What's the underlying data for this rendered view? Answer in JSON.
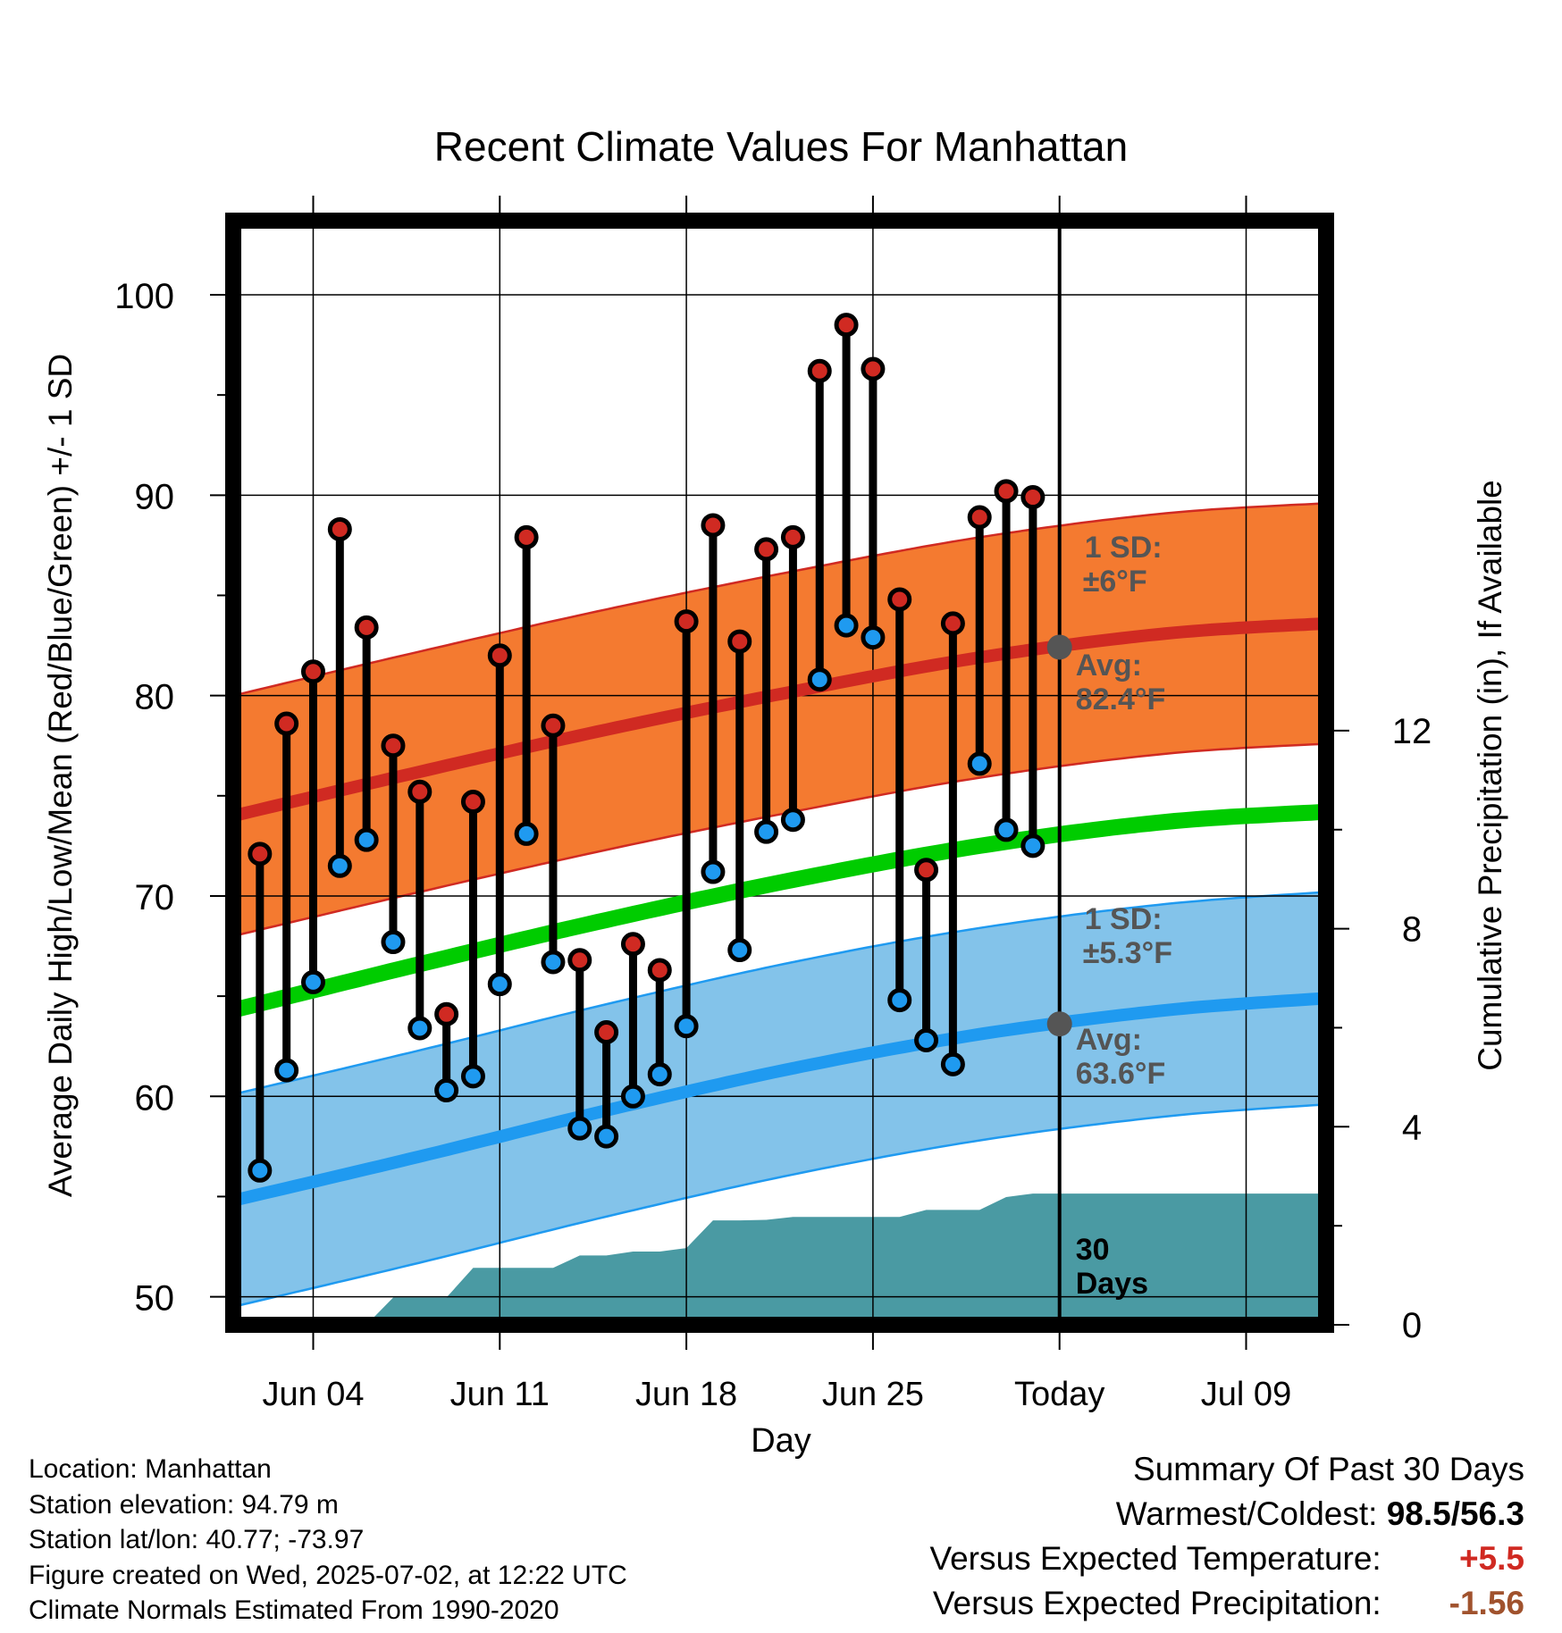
{
  "chart_data": {
    "type": "line",
    "title": "Recent Climate Values For Manhattan",
    "xlabel": "Day",
    "ylabel": "Average Daily High/Low/Mean (Red/Blue/Green) +/- 1 SD",
    "y2label": "Cumulative Precipitation (in), If Available",
    "ylim": [
      48.6,
      103.7
    ],
    "y2lim": [
      0,
      22.3
    ],
    "xlim": [
      "2025-06-01",
      "2025-07-12"
    ],
    "x_tick_dates": [
      "2025-06-04",
      "2025-06-11",
      "2025-06-18",
      "2025-06-25",
      "2025-07-02",
      "2025-07-09"
    ],
    "x_tick_labels": [
      "Jun 04",
      "Jun 11",
      "Jun 18",
      "Jun 25",
      "Today",
      "Jul 09"
    ],
    "y_ticks": [
      50,
      60,
      70,
      80,
      90,
      100
    ],
    "y_tick_labels": [
      "50",
      "60",
      "70",
      "80",
      "90",
      "100"
    ],
    "y2_ticks": [
      0,
      4,
      8,
      12
    ],
    "y2_tick_labels": [
      "0",
      "4",
      "8",
      "12"
    ],
    "grid": true,
    "today": "2025-07-02",
    "colors": {
      "high": "#d02a22",
      "low": "#1f9af0",
      "mean": "#00cc00",
      "high_band": "#f47a30",
      "low_band": "#83c3ea",
      "precip": "#4a9aa3",
      "marker_today": "#555555",
      "annotation": "#555555"
    },
    "normals": {
      "dates": [
        "2025-06-01",
        "2025-06-08",
        "2025-06-15",
        "2025-06-22",
        "2025-06-29",
        "2025-07-06",
        "2025-07-12"
      ],
      "high_avg": [
        74.0,
        76.2,
        78.3,
        80.2,
        81.9,
        83.1,
        83.6
      ],
      "high_sd": 6,
      "low_avg": [
        54.8,
        57.0,
        59.3,
        61.4,
        63.1,
        64.3,
        64.9
      ],
      "low_sd": 5.3,
      "mean_avg": [
        64.3,
        66.6,
        68.8,
        70.8,
        72.5,
        73.7,
        74.2
      ]
    },
    "series": [
      {
        "name": "High",
        "x": [
          "2025-06-02",
          "2025-06-03",
          "2025-06-04",
          "2025-06-05",
          "2025-06-06",
          "2025-06-07",
          "2025-06-08",
          "2025-06-09",
          "2025-06-10",
          "2025-06-11",
          "2025-06-12",
          "2025-06-13",
          "2025-06-14",
          "2025-06-15",
          "2025-06-16",
          "2025-06-17",
          "2025-06-18",
          "2025-06-19",
          "2025-06-20",
          "2025-06-21",
          "2025-06-22",
          "2025-06-23",
          "2025-06-24",
          "2025-06-25",
          "2025-06-26",
          "2025-06-27",
          "2025-06-28",
          "2025-06-29",
          "2025-06-30",
          "2025-07-01"
        ],
        "values": [
          72.1,
          78.6,
          81.2,
          88.3,
          83.4,
          77.5,
          75.2,
          64.1,
          74.7,
          82.0,
          87.9,
          78.5,
          66.8,
          63.2,
          67.6,
          66.3,
          83.7,
          88.5,
          82.7,
          87.3,
          87.9,
          96.2,
          98.5,
          96.3,
          84.8,
          71.3,
          83.6,
          88.9,
          90.2,
          89.9
        ]
      },
      {
        "name": "Low",
        "x": [
          "2025-06-02",
          "2025-06-03",
          "2025-06-04",
          "2025-06-05",
          "2025-06-06",
          "2025-06-07",
          "2025-06-08",
          "2025-06-09",
          "2025-06-10",
          "2025-06-11",
          "2025-06-12",
          "2025-06-13",
          "2025-06-14",
          "2025-06-15",
          "2025-06-16",
          "2025-06-17",
          "2025-06-18",
          "2025-06-19",
          "2025-06-20",
          "2025-06-21",
          "2025-06-22",
          "2025-06-23",
          "2025-06-24",
          "2025-06-25",
          "2025-06-26",
          "2025-06-27",
          "2025-06-28",
          "2025-06-29",
          "2025-06-30",
          "2025-07-01"
        ],
        "values": [
          56.3,
          61.3,
          65.7,
          71.5,
          72.8,
          67.7,
          63.4,
          60.3,
          61.0,
          65.6,
          73.1,
          66.7,
          58.4,
          58.0,
          60.0,
          61.1,
          63.5,
          71.2,
          67.3,
          73.2,
          73.8,
          80.8,
          83.5,
          82.9,
          64.8,
          62.8,
          61.6,
          76.6,
          73.3,
          72.5
        ]
      }
    ],
    "precip_cumulative": {
      "x": [
        "2025-06-01",
        "2025-06-06",
        "2025-06-07",
        "2025-06-09",
        "2025-06-10",
        "2025-06-13",
        "2025-06-14",
        "2025-06-15",
        "2025-06-16",
        "2025-06-17",
        "2025-06-18",
        "2025-06-19",
        "2025-06-20",
        "2025-06-21",
        "2025-06-22",
        "2025-06-26",
        "2025-06-27",
        "2025-06-29",
        "2025-06-30",
        "2025-07-01",
        "2025-07-12"
      ],
      "values": [
        0,
        0,
        0.55,
        0.55,
        1.15,
        1.15,
        1.4,
        1.4,
        1.48,
        1.48,
        1.55,
        2.11,
        2.11,
        2.12,
        2.18,
        2.18,
        2.32,
        2.32,
        2.58,
        2.65,
        2.65
      ]
    },
    "annotations": [
      {
        "label": "1 SD:",
        "value": "±6°F"
      },
      {
        "label": "Avg:",
        "value": "82.4°F"
      },
      {
        "label": "1 SD:",
        "value": "±5.3°F"
      },
      {
        "label": "Avg:",
        "value": "63.6°F"
      },
      {
        "label": "30",
        "value": "Days"
      }
    ]
  },
  "info": [
    "Location: Manhattan",
    "Station elevation: 94.79 m",
    "Station lat/lon: 40.77; -73.97",
    "Figure created on Wed, 2025-07-02, at 12:22 UTC",
    "Climate Normals Estimated From 1990-2020"
  ],
  "summary": {
    "title": "Summary Of Past 30 Days",
    "warmest_label": "Warmest/Coldest:",
    "warmest_value": "98.5",
    "coldest_value": "56.3",
    "temp_label": "Versus Expected Temperature:",
    "temp_value": "+5.5",
    "precip_label": "Versus Expected Precipitation:",
    "precip_value": "-1.56"
  }
}
